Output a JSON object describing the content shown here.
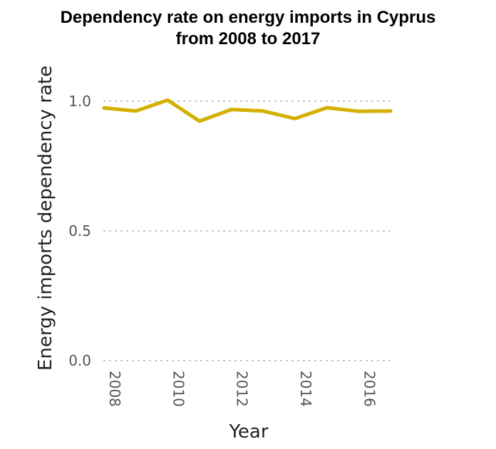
{
  "chart_data": {
    "type": "line",
    "title_line1": "Dependency rate on energy imports in Cyprus",
    "title_line2": "from 2008 to 2017",
    "xlabel": "Year",
    "ylabel": "Energy imports dependency rate",
    "x": [
      2008,
      2009,
      2010,
      2011,
      2012,
      2013,
      2014,
      2015,
      2016,
      2017
    ],
    "series": [
      {
        "values": [
          0.974,
          0.962,
          1.004,
          0.923,
          0.968,
          0.962,
          0.933,
          0.975,
          0.961,
          0.962
        ]
      }
    ],
    "xlim": [
      2008,
      2017
    ],
    "ylim": [
      0,
      1
    ],
    "x_ticks": [
      "2008",
      "2010",
      "2012",
      "2014",
      "2016"
    ],
    "y_ticks": [
      "0.0",
      "0.5",
      "1.0"
    ],
    "grid": "horizontal-dotted",
    "line_color": "#d4b000",
    "grid_color": "#bbbbbb"
  }
}
